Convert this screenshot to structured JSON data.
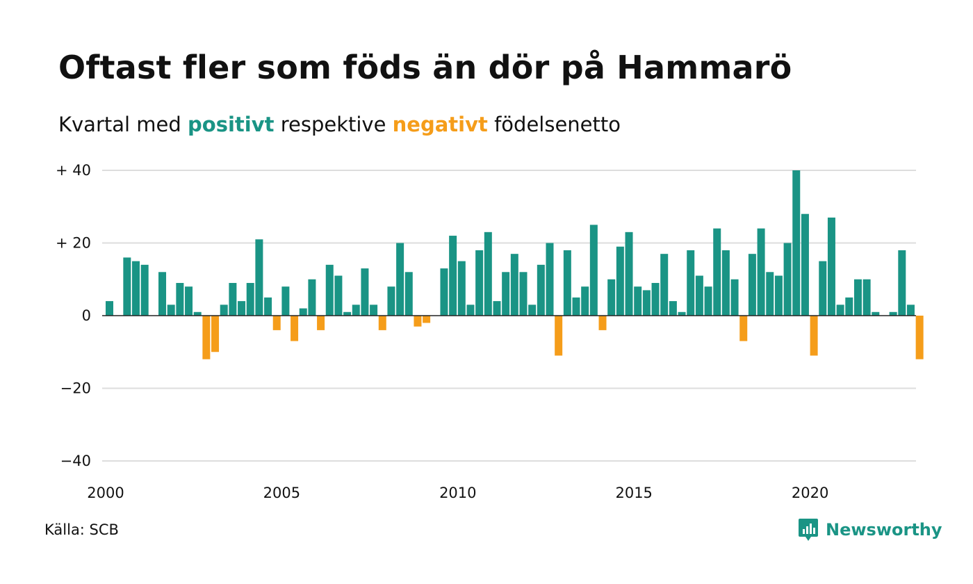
{
  "title": "Oftast fler som föds än dör på Hammarö",
  "subtitle": {
    "prefix": "Kvartal med ",
    "positive_word": "positivt",
    "middle": " respektive ",
    "negative_word": "negativt",
    "suffix": " födelsenetto"
  },
  "source": "Källa: SCB",
  "brand": "Newsworthy",
  "colors": {
    "positive": "#1a9485",
    "negative": "#f59d1a",
    "grid": "#dddddd",
    "zero_line": "#222222",
    "text": "#111111"
  },
  "chart_data": {
    "type": "bar",
    "title": "Oftast fler som föds än dör på Hammarö",
    "subtitle": "Kvartal med positivt respektive negativt födelsenetto",
    "xlabel": "",
    "ylabel": "",
    "x_start": "2000 Q1",
    "x_ticks": [
      {
        "year": 2000,
        "label": "2000"
      },
      {
        "year": 2005,
        "label": "2005"
      },
      {
        "year": 2010,
        "label": "2010"
      },
      {
        "year": 2015,
        "label": "2015"
      },
      {
        "year": 2020,
        "label": "2020"
      }
    ],
    "y_ticks": [
      {
        "value": 40,
        "label": "+ 40"
      },
      {
        "value": 20,
        "label": "+ 20"
      },
      {
        "value": 0,
        "label": "0"
      },
      {
        "value": -20,
        "label": "−20"
      },
      {
        "value": -40,
        "label": "−40"
      }
    ],
    "ylim": [
      -40,
      40
    ],
    "grid": true,
    "values": [
      4,
      0,
      16,
      15,
      14,
      0,
      12,
      3,
      9,
      8,
      1,
      -12,
      -10,
      3,
      9,
      4,
      9,
      21,
      5,
      -4,
      8,
      -7,
      2,
      10,
      -4,
      14,
      11,
      1,
      3,
      13,
      3,
      -4,
      8,
      20,
      12,
      -3,
      -2,
      0,
      13,
      22,
      15,
      3,
      18,
      23,
      4,
      12,
      17,
      12,
      3,
      14,
      20,
      -11,
      18,
      5,
      8,
      25,
      -4,
      10,
      19,
      23,
      8,
      7,
      9,
      17,
      4,
      1,
      18,
      11,
      8,
      24,
      18,
      10,
      -7,
      17,
      24,
      12,
      11,
      20,
      40,
      28,
      -11,
      15,
      27,
      3,
      5,
      10,
      10,
      1,
      0,
      1,
      18,
      3,
      -12
    ]
  }
}
